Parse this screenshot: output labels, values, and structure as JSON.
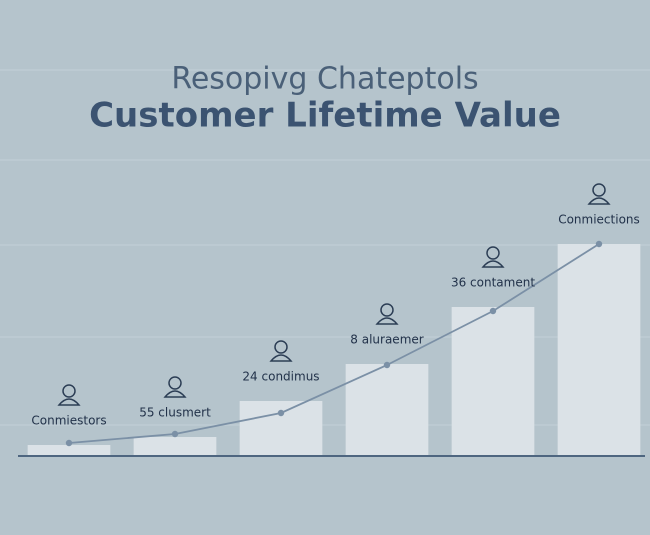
{
  "chart_data": {
    "type": "bar",
    "subtitle": "Resopivg Chateptols",
    "title": "Customer Lifetime Value",
    "categories": [
      "Conmiestors",
      "55 clusmert",
      "24 condimus",
      "8 aluraemer",
      "36 contament",
      "Conmiections"
    ],
    "values": [
      11,
      19,
      55,
      92,
      149,
      212
    ],
    "color": "#dbe2e7",
    "line": {
      "color": "#7b90a6",
      "values": [
        13,
        22,
        43,
        91,
        145,
        212
      ]
    },
    "ylim": [
      0,
      220
    ]
  }
}
